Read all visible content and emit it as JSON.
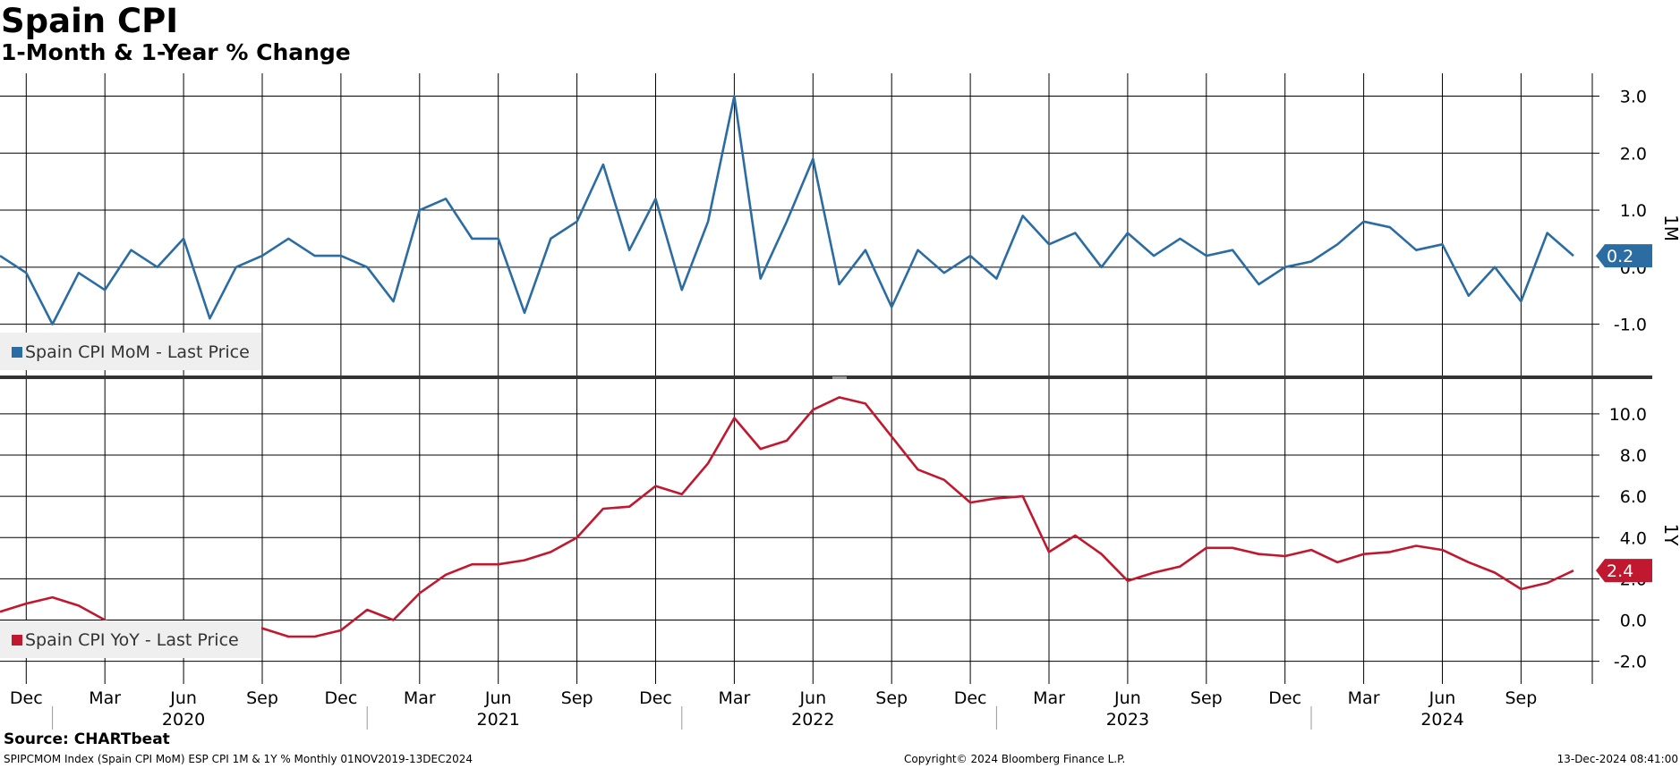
{
  "header": {
    "title": "Spain CPI",
    "subtitle": "1-Month & 1-Year % Change"
  },
  "footer": {
    "source": "Source: CHARTbeat",
    "left": "SPIPCMOM Index (Spain CPI MoM) ESP CPI 1M & 1Y %  Monthly 01NOV2019-13DEC2024",
    "center": "Copyright© 2024 Bloomberg Finance L.P.",
    "right": "13-Dec-2024 08:41:00"
  },
  "colors": {
    "mom": "#2b6ca3",
    "yoy": "#c0182f",
    "grid": "#000000"
  },
  "chart_data": {
    "type": "line",
    "x": [
      "2019-11",
      "2019-12",
      "2020-01",
      "2020-02",
      "2020-03",
      "2020-04",
      "2020-05",
      "2020-06",
      "2020-07",
      "2020-08",
      "2020-09",
      "2020-10",
      "2020-11",
      "2020-12",
      "2021-01",
      "2021-02",
      "2021-03",
      "2021-04",
      "2021-05",
      "2021-06",
      "2021-07",
      "2021-08",
      "2021-09",
      "2021-10",
      "2021-11",
      "2021-12",
      "2022-01",
      "2022-02",
      "2022-03",
      "2022-04",
      "2022-05",
      "2022-06",
      "2022-07",
      "2022-08",
      "2022-09",
      "2022-10",
      "2022-11",
      "2022-12",
      "2023-01",
      "2023-02",
      "2023-03",
      "2023-04",
      "2023-05",
      "2023-06",
      "2023-07",
      "2023-08",
      "2023-09",
      "2023-10",
      "2023-11",
      "2023-12",
      "2024-01",
      "2024-02",
      "2024-03",
      "2024-04",
      "2024-05",
      "2024-06",
      "2024-07",
      "2024-08",
      "2024-09",
      "2024-10",
      "2024-11"
    ],
    "x_tick_labels": [
      {
        "date": "2019-12",
        "label": "Dec"
      },
      {
        "date": "2020-03",
        "label": "Mar"
      },
      {
        "date": "2020-06",
        "label": "Jun"
      },
      {
        "date": "2020-09",
        "label": "Sep"
      },
      {
        "date": "2020-12",
        "label": "Dec"
      },
      {
        "date": "2021-03",
        "label": "Mar"
      },
      {
        "date": "2021-06",
        "label": "Jun"
      },
      {
        "date": "2021-09",
        "label": "Sep"
      },
      {
        "date": "2021-12",
        "label": "Dec"
      },
      {
        "date": "2022-03",
        "label": "Mar"
      },
      {
        "date": "2022-06",
        "label": "Jun"
      },
      {
        "date": "2022-09",
        "label": "Sep"
      },
      {
        "date": "2022-12",
        "label": "Dec"
      },
      {
        "date": "2023-03",
        "label": "Mar"
      },
      {
        "date": "2023-06",
        "label": "Jun"
      },
      {
        "date": "2023-09",
        "label": "Sep"
      },
      {
        "date": "2023-12",
        "label": "Dec"
      },
      {
        "date": "2024-03",
        "label": "Mar"
      },
      {
        "date": "2024-06",
        "label": "Jun"
      },
      {
        "date": "2024-09",
        "label": "Sep"
      }
    ],
    "x_year_labels": [
      {
        "date": "2020-06",
        "label": "2020"
      },
      {
        "date": "2021-06",
        "label": "2021"
      },
      {
        "date": "2022-06",
        "label": "2022"
      },
      {
        "date": "2023-06",
        "label": "2023"
      },
      {
        "date": "2024-06",
        "label": "2024"
      }
    ],
    "panels": [
      {
        "id": "mom",
        "axis_label": "1M",
        "ylim": [
          -1.9,
          3.4
        ],
        "yticks": [
          {
            "value": 3.0,
            "label": "3.0"
          },
          {
            "value": 2.0,
            "label": "2.0"
          },
          {
            "value": 1.0,
            "label": "1.0"
          },
          {
            "value": 0.0,
            "label": "0.0"
          },
          {
            "value": -1.0,
            "label": "-1.0"
          }
        ],
        "series": [
          {
            "name": "Spain CPI MoM - Last Price",
            "color": "#2b6ca3",
            "last_value_label": "0.2",
            "values": [
              0.2,
              -0.1,
              -1.0,
              -0.1,
              -0.4,
              0.3,
              0.0,
              0.5,
              -0.9,
              0.0,
              0.2,
              0.5,
              0.2,
              0.2,
              0.0,
              -0.6,
              1.0,
              1.2,
              0.5,
              0.5,
              -0.8,
              0.5,
              0.8,
              1.8,
              0.3,
              1.2,
              -0.4,
              0.8,
              3.0,
              -0.2,
              0.8,
              1.9,
              -0.3,
              0.3,
              -0.7,
              0.3,
              -0.1,
              0.2,
              -0.2,
              0.9,
              0.4,
              0.6,
              0.0,
              0.6,
              0.2,
              0.5,
              0.2,
              0.3,
              -0.3,
              0.0,
              0.1,
              0.4,
              0.8,
              0.7,
              0.3,
              0.4,
              -0.5,
              0.0,
              -0.6,
              0.6,
              0.2
            ]
          }
        ]
      },
      {
        "id": "yoy",
        "axis_label": "1Y",
        "ylim": [
          -3.1,
          11.6
        ],
        "yticks": [
          {
            "value": 10.0,
            "label": "10.0"
          },
          {
            "value": 8.0,
            "label": "8.0"
          },
          {
            "value": 6.0,
            "label": "6.0"
          },
          {
            "value": 4.0,
            "label": "4.0"
          },
          {
            "value": 2.0,
            "label": "2.0"
          },
          {
            "value": 0.0,
            "label": "0.0"
          },
          {
            "value": -2.0,
            "label": "-2.0"
          }
        ],
        "series": [
          {
            "name": "Spain CPI YoY - Last Price",
            "color": "#c0182f",
            "last_value_label": "2.4",
            "values": [
              0.4,
              0.8,
              1.1,
              0.7,
              0.0,
              -0.7,
              -0.9,
              -0.3,
              -0.6,
              -0.5,
              -0.4,
              -0.8,
              -0.8,
              -0.5,
              0.5,
              0.0,
              1.3,
              2.2,
              2.7,
              2.7,
              2.9,
              3.3,
              4.0,
              5.4,
              5.5,
              6.5,
              6.1,
              7.6,
              9.8,
              8.3,
              8.7,
              10.2,
              10.8,
              10.5,
              8.9,
              7.3,
              6.8,
              5.7,
              5.9,
              6.0,
              3.3,
              4.1,
              3.2,
              1.9,
              2.3,
              2.6,
              3.5,
              3.5,
              3.2,
              3.1,
              3.4,
              2.8,
              3.2,
              3.3,
              3.6,
              3.4,
              2.8,
              2.3,
              1.5,
              1.8,
              2.4
            ]
          }
        ]
      }
    ]
  }
}
